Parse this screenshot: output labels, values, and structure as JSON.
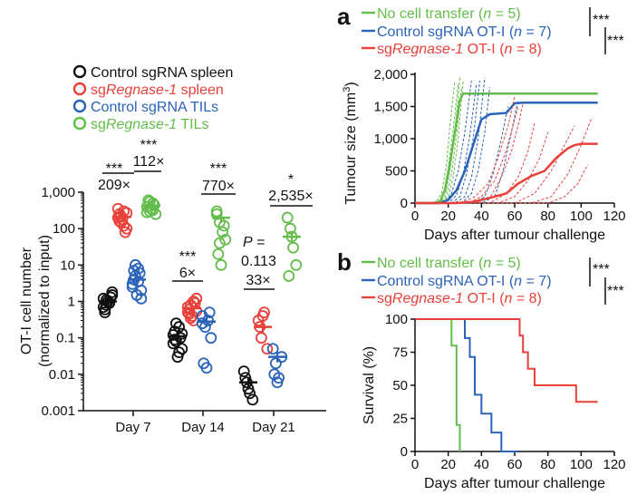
{
  "colors": {
    "black": "#111111",
    "red": "#e8413a",
    "blue": "#2a63b8",
    "green": "#63bd4a"
  },
  "left_legend": [
    {
      "label_pre": "Control sgRNA spleen",
      "label_it": "",
      "label_post": "",
      "color": "black"
    },
    {
      "label_pre": "sg",
      "label_it": "Regnase-1",
      "label_post": " spleen",
      "color": "red"
    },
    {
      "label_pre": "Control sgRNA TILs",
      "label_it": "",
      "label_post": "",
      "color": "blue"
    },
    {
      "label_pre": "sg",
      "label_it": "Regnase-1",
      "label_post": " TILs",
      "color": "green"
    }
  ],
  "annotations": {
    "d7_sig_bottom": "***",
    "d7_fold_bottom": "209×",
    "d7_sig_top": "***",
    "d7_fold_top": "112×",
    "d14_sig_bottom": "***",
    "d14_fold_bottom": "6×",
    "d14_sig_top": "***",
    "d14_fold_top": "770×",
    "d21_p_label": "P",
    "d21_p_eq": " =",
    "d21_p_value": "0.113",
    "d21_fold_bottom": "33×",
    "d21_sig_top": "*",
    "d21_fold_top": "2,535×"
  },
  "right_legend": [
    {
      "pre": "No cell transfer (",
      "it": "n",
      "post": " = 5)",
      "color": "green"
    },
    {
      "pre": "Control sgRNA OT-I (",
      "it": "n",
      "post": " = 7)",
      "color": "blue"
    },
    {
      "pre": "sg",
      "it2": "Regnase-1",
      "mid": " OT-I (",
      "it": "n",
      "post": " = 8)",
      "color": "red"
    }
  ],
  "legend_sig": [
    "***",
    "***"
  ],
  "panel_labels": {
    "a": "a",
    "b": "b"
  },
  "chart_data": [
    {
      "type": "scatter",
      "title": "",
      "ylabel_line1": "OT-I cell number",
      "ylabel_line2": "(normalized to input)",
      "yscale": "log",
      "ylim": [
        0.001,
        1000
      ],
      "yticks": [
        0.001,
        0.01,
        0.1,
        1,
        10,
        100,
        1000
      ],
      "ytick_labels": [
        "0.001",
        "0.01",
        "0.1",
        "1",
        "10",
        "100",
        "1,000"
      ],
      "categories": [
        "Day 7",
        "Day 14",
        "Day 21"
      ],
      "series": [
        {
          "name": "Control sgRNA spleen",
          "color": "black",
          "values": [
            [
              1.2,
              0.8,
              0.9,
              1.5,
              0.6,
              1.0,
              1.3,
              0.7,
              1.1,
              0.9,
              1.8,
              0.5,
              1.0
            ],
            [
              0.12,
              0.08,
              0.2,
              0.05,
              0.15,
              0.03,
              0.1,
              0.07,
              0.25,
              0.04,
              0.13,
              0.09
            ],
            [
              0.012,
              0.006,
              0.003,
              0.002,
              0.008,
              0.004
            ]
          ],
          "means": [
            1.0,
            0.11,
            0.006
          ]
        },
        {
          "name": "sgRegnase-1 spleen",
          "color": "red",
          "values": [
            [
              200,
              150,
              300,
              100,
              250,
              180,
              80,
              350,
              220,
              120,
              270,
              160
            ],
            [
              0.5,
              0.8,
              0.3,
              1.2,
              0.6,
              0.4,
              0.9,
              0.7,
              0.35,
              1.0,
              0.55,
              0.45
            ],
            [
              0.3,
              0.1,
              0.5,
              0.05,
              0.2,
              0.4
            ]
          ],
          "means": [
            210,
            0.65,
            0.2
          ]
        },
        {
          "name": "Control sgRNA TILs",
          "color": "blue",
          "values": [
            [
              3,
              5,
              8,
              2,
              4,
              1.5,
              6,
              2.5,
              10,
              3.5,
              1.2,
              7
            ],
            [
              0.4,
              0.2,
              0.3,
              0.1,
              0.02,
              0.015,
              0.5,
              0.25
            ],
            [
              0.05,
              0.02,
              0.008,
              0.03,
              0.01,
              0.006
            ]
          ],
          "means": [
            4,
            0.28,
            0.03
          ]
        },
        {
          "name": "sgRegnase-1 TILs",
          "color": "green",
          "values": [
            [
              400,
              300,
              500,
              250,
              600,
              350,
              450,
              280,
              550,
              320
            ],
            [
              300,
              150,
              80,
              50,
              20,
              10,
              120,
              250,
              40
            ],
            [
              200,
              100,
              30,
              10,
              5,
              60
            ]
          ],
          "means": [
            420,
            200,
            60
          ]
        }
      ]
    },
    {
      "type": "line",
      "panel": "a",
      "xlabel": "Days after tumour challenge",
      "ylabel_pre": "Tumour size (mm",
      "ylabel_sup": "3",
      "ylabel_post": ")",
      "xlim": [
        0,
        120
      ],
      "ylim": [
        0,
        2000
      ],
      "xticks": [
        0,
        20,
        40,
        60,
        80,
        100,
        120
      ],
      "yticks": [
        0,
        500,
        1000,
        1500,
        2000
      ],
      "ytick_labels": [
        "0",
        "500",
        "1,000",
        "1,500",
        "2,000"
      ],
      "series": [
        {
          "name": "No cell transfer",
          "color": "green",
          "mean": {
            "x": [
              0,
              10,
              15,
              18,
              21,
              24,
              27,
              29,
              110
            ],
            "y": [
              0,
              0,
              20,
              200,
              600,
              1100,
              1600,
              1700,
              1700
            ]
          },
          "individual": [
            {
              "x": [
                0,
                12,
                16,
                19,
                21,
                24
              ],
              "y": [
                0,
                0,
                150,
                600,
                1200,
                1900
              ]
            },
            {
              "x": [
                0,
                13,
                17,
                20,
                23,
                26
              ],
              "y": [
                0,
                0,
                120,
                550,
                1150,
                1850
              ]
            },
            {
              "x": [
                0,
                14,
                18,
                21,
                24,
                27
              ],
              "y": [
                0,
                0,
                100,
                500,
                1100,
                1950
              ]
            },
            {
              "x": [
                0,
                15,
                19,
                22,
                25,
                28
              ],
              "y": [
                0,
                0,
                100,
                450,
                1050,
                1800
              ]
            },
            {
              "x": [
                0,
                16,
                20,
                23,
                26,
                29
              ],
              "y": [
                0,
                0,
                90,
                400,
                1000,
                1900
              ]
            }
          ]
        },
        {
          "name": "Control sgRNA OT-I",
          "color": "blue",
          "mean": {
            "x": [
              0,
              15,
              20,
              25,
              30,
              35,
              40,
              45,
              55,
              60,
              65,
              110
            ],
            "y": [
              0,
              0,
              50,
              200,
              500,
              900,
              1300,
              1380,
              1400,
              1550,
              1560,
              1560
            ]
          },
          "individual": [
            {
              "x": [
                0,
                18,
                22,
                26,
                30,
                34
              ],
              "y": [
                0,
                0,
                150,
                500,
                1100,
                1900
              ]
            },
            {
              "x": [
                0,
                20,
                25,
                29,
                33,
                37
              ],
              "y": [
                0,
                0,
                120,
                450,
                1050,
                1850
              ]
            },
            {
              "x": [
                0,
                22,
                27,
                31,
                35,
                39
              ],
              "y": [
                0,
                0,
                100,
                450,
                1000,
                1900
              ]
            },
            {
              "x": [
                0,
                24,
                30,
                34,
                38,
                42
              ],
              "y": [
                0,
                0,
                100,
                400,
                1000,
                1950
              ]
            },
            {
              "x": [
                0,
                28,
                34,
                38,
                42,
                45
              ],
              "y": [
                0,
                0,
                150,
                500,
                1100,
                1800
              ]
            },
            {
              "x": [
                0,
                35,
                42,
                47,
                52,
                56
              ],
              "y": [
                0,
                0,
                100,
                450,
                1000,
                1500
              ]
            },
            {
              "x": [
                0,
                40,
                48,
                53,
                58,
                62
              ],
              "y": [
                0,
                0,
                100,
                500,
                1100,
                1600
              ]
            }
          ]
        },
        {
          "name": "sgRegnase-1 OT-I",
          "color": "red",
          "mean": {
            "x": [
              0,
              25,
              35,
              45,
              55,
              62,
              70,
              78,
              85,
              92,
              96,
              100,
              110
            ],
            "y": [
              0,
              0,
              20,
              80,
              150,
              300,
              420,
              500,
              700,
              850,
              900,
              920,
              920
            ]
          },
          "individual": [
            {
              "x": [
                0,
                28,
                36,
                44,
                50,
                56,
                60
              ],
              "y": [
                0,
                0,
                100,
                300,
                700,
                1200,
                1650
              ]
            },
            {
              "x": [
                0,
                32,
                40,
                48,
                54,
                58,
                62
              ],
              "y": [
                0,
                0,
                100,
                350,
                750,
                1100,
                1500
              ]
            },
            {
              "x": [
                0,
                38,
                46,
                52,
                58,
                62,
                65
              ],
              "y": [
                0,
                0,
                120,
                400,
                800,
                1200,
                1550
              ]
            },
            {
              "x": [
                0,
                45,
                55,
                62,
                68,
                72
              ],
              "y": [
                0,
                0,
                150,
                400,
                800,
                1250
              ]
            },
            {
              "x": [
                0,
                50,
                60,
                68,
                75,
                80
              ],
              "y": [
                0,
                0,
                100,
                350,
                700,
                1100
              ]
            },
            {
              "x": [
                0,
                60,
                72,
                82,
                90,
                96
              ],
              "y": [
                0,
                0,
                150,
                500,
                900,
                1200
              ]
            },
            {
              "x": [
                0,
                70,
                82,
                92,
                100,
                106
              ],
              "y": [
                0,
                0,
                100,
                450,
                900,
                1300
              ]
            },
            {
              "x": [
                0,
                80,
                90,
                98,
                104
              ],
              "y": [
                0,
                0,
                100,
                300,
                600
              ]
            }
          ]
        }
      ]
    },
    {
      "type": "line",
      "panel": "b",
      "xlabel": "Days after tumour challenge",
      "ylabel": "Survival (%)",
      "xlim": [
        0,
        120
      ],
      "ylim": [
        0,
        100
      ],
      "xticks": [
        0,
        20,
        40,
        60,
        80,
        100,
        120
      ],
      "yticks": [
        0,
        25,
        50,
        75,
        100
      ],
      "series": [
        {
          "name": "No cell transfer",
          "color": "green",
          "x": [
            0,
            22,
            22,
            25,
            25,
            27,
            27
          ],
          "y": [
            100,
            100,
            80,
            80,
            20,
            20,
            0
          ]
        },
        {
          "name": "Control sgRNA OT-I",
          "color": "blue",
          "x": [
            0,
            30,
            30,
            33,
            33,
            36,
            36,
            40,
            40,
            46,
            46,
            52,
            52,
            62,
            62
          ],
          "y": [
            100,
            100,
            85.7,
            85.7,
            71.4,
            71.4,
            42.9,
            42.9,
            28.6,
            28.6,
            14.3,
            14.3,
            0,
            0,
            0
          ]
        },
        {
          "name": "sgRegnase-1 OT-I",
          "color": "red",
          "x": [
            0,
            63,
            63,
            65,
            65,
            68,
            68,
            72,
            72,
            97,
            97,
            110
          ],
          "y": [
            100,
            100,
            87.5,
            87.5,
            75,
            75,
            62.5,
            62.5,
            50,
            50,
            37.5,
            37.5
          ]
        }
      ]
    }
  ]
}
